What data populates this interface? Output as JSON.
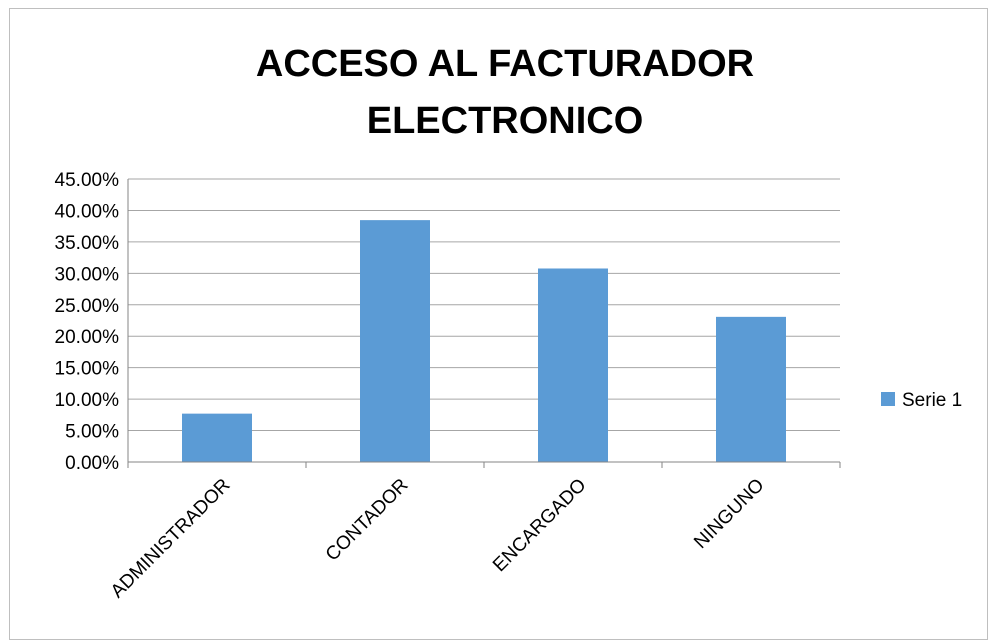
{
  "chart_data": {
    "type": "bar",
    "title": "ACCESO AL FACTURADOR ELECTRONICO",
    "title_lines": [
      "ACCESO AL FACTURADOR",
      "ELECTRONICO"
    ],
    "categories": [
      "ADMINISTRADOR",
      "CONTADOR",
      "ENCARGADO",
      "NINGUNO"
    ],
    "series": [
      {
        "name": "Serie 1",
        "values": [
          0.0769,
          0.3846,
          0.3077,
          0.2308
        ],
        "color": "#5b9bd5"
      }
    ],
    "ylim": [
      0,
      0.45
    ],
    "y_ticks": [
      0,
      0.05,
      0.1,
      0.15,
      0.2,
      0.25,
      0.3,
      0.35,
      0.4,
      0.45
    ],
    "y_tick_labels": [
      "0.00%",
      "5.00%",
      "10.00%",
      "15.00%",
      "20.00%",
      "25.00%",
      "30.00%",
      "35.00%",
      "40.00%",
      "45.00%"
    ],
    "xlabel": "",
    "ylabel": "",
    "grid": true,
    "legend_position": "right"
  }
}
